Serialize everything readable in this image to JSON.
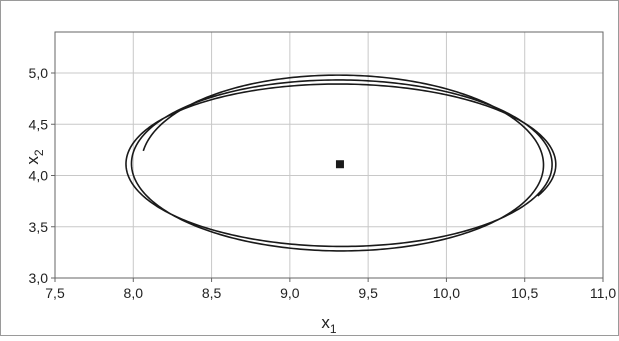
{
  "chart_data": {
    "type": "line",
    "title": "",
    "xlabel": "x",
    "xlabel_sub": "1",
    "ylabel": "x",
    "ylabel_sub": "2",
    "xlim": [
      7.5,
      11.0
    ],
    "ylim": [
      3.0,
      5.4
    ],
    "x_ticks": [
      7.5,
      8.0,
      8.5,
      9.0,
      9.5,
      10.0,
      10.5,
      11.0
    ],
    "x_tick_labels": [
      "7,5",
      "8,0",
      "8,5",
      "9,0",
      "9,5",
      "10,0",
      "10,5",
      "11,0"
    ],
    "y_ticks": [
      3.0,
      3.5,
      4.0,
      4.5,
      5.0
    ],
    "y_tick_labels": [
      "3,0",
      "3,5",
      "4,0",
      "4,5",
      "5,0"
    ],
    "grid": true,
    "series": [
      {
        "kind": "spiral-trajectory",
        "center": {
          "x": 9.32,
          "y": 4.11
        },
        "start": {
          "x": 8.05,
          "y": 4.3
        },
        "end": {
          "x": 10.25,
          "y": 3.7
        },
        "loops": [
          {
            "rx": 1.27,
            "ry": 0.88
          },
          {
            "rx": 1.35,
            "ry": 0.82
          },
          {
            "rx": 1.38,
            "ry": 0.77
          }
        ],
        "color": "#1a1a1a"
      }
    ],
    "points": [
      {
        "x": 9.32,
        "y": 4.11,
        "marker": "square",
        "color": "#1a1a1a"
      }
    ]
  }
}
